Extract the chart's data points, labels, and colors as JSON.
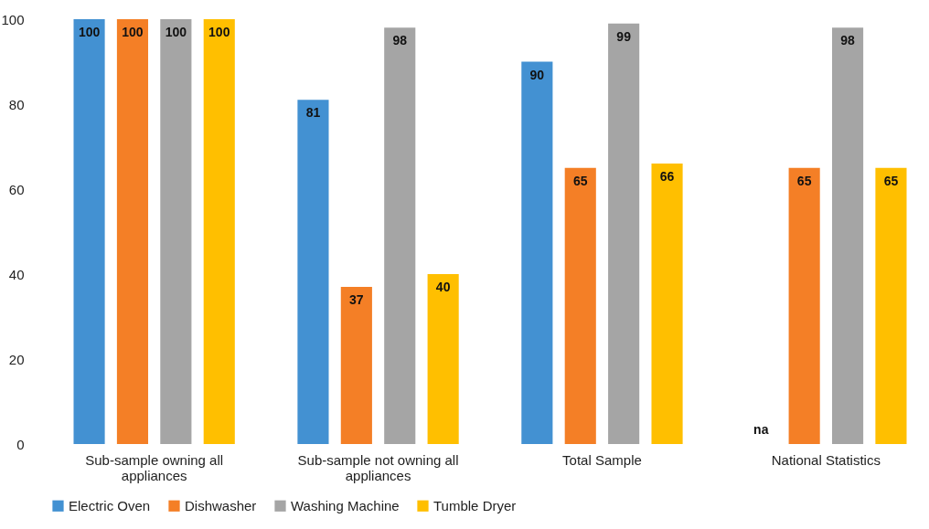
{
  "chart_data": {
    "type": "bar",
    "categories": [
      "Sub-sample owning all appliances",
      "Sub-sample not owning all appliances",
      "Total Sample",
      "National Statistics"
    ],
    "series": [
      {
        "name": "Electric Oven",
        "color": "#4391d2",
        "values": [
          100,
          81,
          90,
          null
        ],
        "value_labels": [
          "100",
          "81",
          "90",
          "na"
        ]
      },
      {
        "name": "Dishwasher",
        "color": "#f47f26",
        "values": [
          100,
          37,
          65,
          65
        ],
        "value_labels": [
          "100",
          "37",
          "65",
          "65"
        ]
      },
      {
        "name": "Washing Machine",
        "color": "#a5a5a5",
        "values": [
          100,
          98,
          99,
          98
        ],
        "value_labels": [
          "100",
          "98",
          "99",
          "98"
        ]
      },
      {
        "name": "Tumble Dryer",
        "color": "#ffbf00",
        "values": [
          100,
          40,
          66,
          65
        ],
        "value_labels": [
          "100",
          "40",
          "66",
          "65"
        ]
      }
    ],
    "ylim": [
      0,
      100
    ],
    "yticks": [
      0,
      20,
      40,
      60,
      80,
      100
    ],
    "grid": false,
    "legend": "bottom"
  }
}
